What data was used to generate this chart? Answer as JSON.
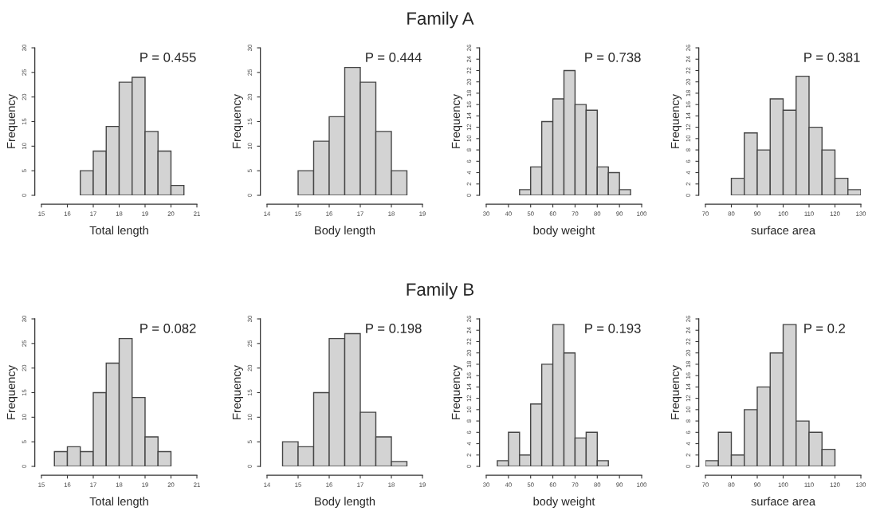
{
  "chart_data": [
    {
      "type": "histogram",
      "xlabel": "Total length",
      "ylabel": "Frequency",
      "annotations": [
        "P = 0.455"
      ],
      "bins": [
        16.5,
        17,
        17.5,
        18,
        18.5,
        19,
        19.5,
        20,
        20.5
      ],
      "values": [
        5,
        9,
        14,
        23,
        24,
        13,
        9,
        2
      ],
      "color": "#d3d3d3",
      "xlim": [
        15,
        21
      ],
      "xticks": [
        15,
        16,
        17,
        18,
        19,
        20,
        21
      ],
      "ylim": [
        0,
        30
      ],
      "yticks": [
        0,
        5,
        10,
        15,
        20,
        25,
        30
      ],
      "grid": false,
      "legend": false
    },
    {
      "type": "histogram",
      "title": "Family A",
      "xlabel": "Body length",
      "ylabel": "Frequency",
      "annotations": [
        "P = 0.444"
      ],
      "bins": [
        15,
        15.5,
        16,
        16.5,
        17,
        17.5,
        18,
        18.5
      ],
      "values": [
        5,
        11,
        16,
        26,
        23,
        13,
        5
      ],
      "color": "#d3d3d3",
      "xlim": [
        14,
        19
      ],
      "xticks": [
        14,
        15,
        16,
        17,
        18,
        19
      ],
      "ylim": [
        0,
        30
      ],
      "yticks": [
        0,
        5,
        10,
        15,
        20,
        25,
        30
      ],
      "grid": false,
      "legend": false
    },
    {
      "type": "histogram",
      "xlabel": "body weight",
      "ylabel": "Frequency",
      "annotations": [
        "P = 0.738"
      ],
      "bins": [
        45,
        50,
        55,
        60,
        65,
        70,
        75,
        80,
        85,
        90,
        95
      ],
      "values": [
        1,
        5,
        13,
        17,
        22,
        16,
        15,
        5,
        4,
        1
      ],
      "color": "#d3d3d3",
      "xlim": [
        30,
        100
      ],
      "xticks": [
        30,
        40,
        50,
        60,
        70,
        80,
        90,
        100
      ],
      "ylim": [
        0,
        26
      ],
      "yticks": [
        0,
        2,
        4,
        6,
        8,
        10,
        12,
        14,
        16,
        18,
        20,
        22,
        24,
        26
      ],
      "grid": false,
      "legend": false
    },
    {
      "type": "histogram",
      "xlabel": "surface area",
      "ylabel": "Frequency",
      "annotations": [
        "P = 0.381"
      ],
      "bins": [
        80,
        85,
        90,
        95,
        100,
        105,
        110,
        115,
        120,
        125,
        130
      ],
      "values": [
        3,
        11,
        8,
        17,
        15,
        21,
        12,
        8,
        3,
        1
      ],
      "color": "#d3d3d3",
      "xlim": [
        70,
        130
      ],
      "xticks": [
        70,
        80,
        90,
        100,
        110,
        120,
        130
      ],
      "ylim": [
        0,
        26
      ],
      "yticks": [
        0,
        2,
        4,
        6,
        8,
        10,
        12,
        14,
        16,
        18,
        20,
        22,
        24,
        26
      ],
      "grid": false,
      "legend": false
    },
    {
      "type": "histogram",
      "xlabel": "Total length",
      "ylabel": "Frequency",
      "annotations": [
        "P = 0.082"
      ],
      "bins": [
        15.5,
        16,
        16.5,
        17,
        17.5,
        18,
        18.5,
        19,
        19.5,
        20
      ],
      "values": [
        3,
        4,
        3,
        15,
        21,
        26,
        14,
        6,
        3
      ],
      "color": "#d3d3d3",
      "xlim": [
        15,
        21
      ],
      "xticks": [
        15,
        16,
        17,
        18,
        19,
        20,
        21
      ],
      "ylim": [
        0,
        30
      ],
      "yticks": [
        0,
        5,
        10,
        15,
        20,
        25,
        30
      ],
      "grid": false,
      "legend": false
    },
    {
      "type": "histogram",
      "title": "Family B",
      "xlabel": "Body length",
      "ylabel": "Frequency",
      "annotations": [
        "P = 0.198"
      ],
      "bins": [
        14.5,
        15,
        15.5,
        16,
        16.5,
        17,
        17.5,
        18,
        18.5
      ],
      "values": [
        5,
        4,
        15,
        26,
        27,
        11,
        6,
        1
      ],
      "color": "#d3d3d3",
      "xlim": [
        14,
        19
      ],
      "xticks": [
        14,
        15,
        16,
        17,
        18,
        19
      ],
      "ylim": [
        0,
        30
      ],
      "yticks": [
        0,
        5,
        10,
        15,
        20,
        25,
        30
      ],
      "grid": false,
      "legend": false
    },
    {
      "type": "histogram",
      "xlabel": "body weight",
      "ylabel": "Frequency",
      "annotations": [
        "P = 0.193"
      ],
      "bins": [
        35,
        40,
        45,
        50,
        55,
        60,
        65,
        70,
        75,
        80,
        85
      ],
      "values": [
        1,
        6,
        2,
        11,
        18,
        25,
        20,
        5,
        6,
        1
      ],
      "color": "#d3d3d3",
      "xlim": [
        30,
        100
      ],
      "xticks": [
        30,
        40,
        50,
        60,
        70,
        80,
        90,
        100
      ],
      "ylim": [
        0,
        26
      ],
      "yticks": [
        0,
        2,
        4,
        6,
        8,
        10,
        12,
        14,
        16,
        18,
        20,
        22,
        24,
        26
      ],
      "grid": false,
      "legend": false
    },
    {
      "type": "histogram",
      "xlabel": "surface area",
      "ylabel": "Frequency",
      "annotations": [
        "P = 0.2"
      ],
      "bins": [
        70,
        75,
        80,
        85,
        90,
        95,
        100,
        105,
        110,
        115,
        120
      ],
      "values": [
        1,
        6,
        2,
        10,
        14,
        20,
        25,
        8,
        6,
        3
      ],
      "color": "#d3d3d3",
      "xlim": [
        70,
        130
      ],
      "xticks": [
        70,
        80,
        90,
        100,
        110,
        120,
        130
      ],
      "ylim": [
        0,
        26
      ],
      "yticks": [
        0,
        2,
        4,
        6,
        8,
        10,
        12,
        14,
        16,
        18,
        20,
        22,
        24,
        26
      ],
      "grid": false,
      "legend": false
    }
  ]
}
